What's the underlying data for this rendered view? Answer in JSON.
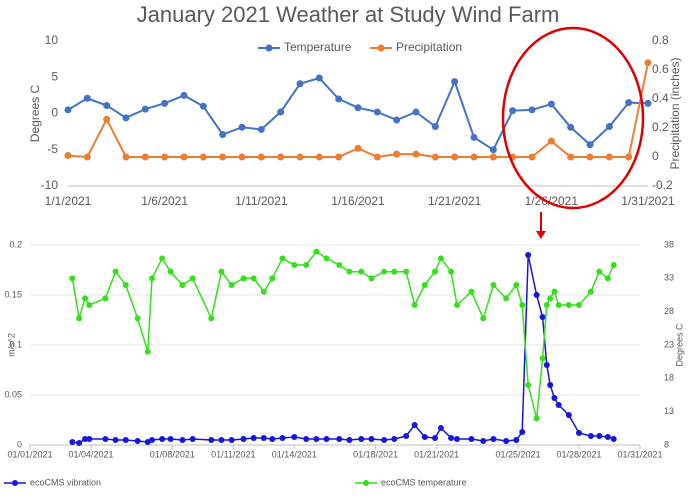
{
  "chart_data": [
    {
      "type": "line",
      "title": "January 2021 Weather at Study Wind Farm",
      "y_label": "Degrees C",
      "y2_label": "Precipitation (inches)",
      "categories": [
        "1/1/2021",
        null,
        null,
        null,
        null,
        "1/6/2021",
        null,
        null,
        null,
        null,
        "1/11/2021",
        null,
        null,
        null,
        null,
        "1/16/2021",
        null,
        null,
        null,
        null,
        "1/21/2021",
        null,
        null,
        null,
        null,
        "1/26/2021",
        null,
        null,
        null,
        null,
        "1/31/2021"
      ],
      "ylim": [
        -10,
        10
      ],
      "yticks": [
        -10,
        -5,
        0,
        5,
        10
      ],
      "y2lim": [
        -0.2,
        0.8
      ],
      "y2ticks": [
        -0.2,
        0,
        0.2,
        0.4,
        0.6,
        0.8
      ],
      "grid": false,
      "legend": "top",
      "series": [
        {
          "name": "Temperature",
          "color": "#4472c4",
          "values": [
            0.5,
            2.1,
            1.1,
            -0.6,
            0.6,
            1.4,
            2.5,
            1.0,
            -2.9,
            -1.9,
            -2.2,
            0.2,
            4.1,
            4.9,
            2.0,
            0.8,
            0.2,
            -0.9,
            0.2,
            -1.8,
            4.4,
            -3.3,
            -5.0,
            0.4,
            0.5,
            1.3,
            -1.9,
            -4.3,
            -1.8,
            1.5,
            1.4
          ]
        },
        {
          "name": "Precipitation",
          "color": "#ed7d31",
          "axis": "y2",
          "values": [
            0.01,
            0,
            0.26,
            0,
            0,
            0,
            0,
            0,
            0,
            0,
            0,
            0,
            0,
            0,
            0,
            0.06,
            0,
            0.02,
            0.02,
            0,
            0,
            0,
            0,
            0,
            0,
            0.11,
            0,
            0,
            0,
            0,
            0.65
          ]
        }
      ]
    },
    {
      "type": "line",
      "y_label": "m/s^2",
      "y2_label": "Degrees C",
      "x": [
        "2021-01-03T02:00",
        "2021-01-03T10:00",
        "2021-01-03T17:00",
        "2021-01-03T22:00",
        "2021-01-04T17:00",
        "2021-01-05T05:00",
        "2021-01-05T17:00",
        "2021-01-06T07:00",
        "2021-01-06T19:00",
        "2021-01-07T00:00",
        "2021-01-07T12:00",
        "2021-01-07T22:00",
        "2021-01-08T12:00",
        "2021-01-09T00:00",
        "2021-01-09T22:00",
        "2021-01-10T10:00",
        "2021-01-10T22:00",
        "2021-01-11T12:00",
        "2021-01-12T00:00",
        "2021-01-12T12:00",
        "2021-01-12T22:00",
        "2021-01-13T10:00",
        "2021-01-14T00:00",
        "2021-01-14T14:00",
        "2021-01-15T02:00",
        "2021-01-15T14:00",
        "2021-01-16T05:00",
        "2021-01-16T17:00",
        "2021-01-17T07:00",
        "2021-01-17T19:00",
        "2021-01-18T10:00",
        "2021-01-18T22:00",
        "2021-01-19T12:00",
        "2021-01-19T22:00",
        "2021-01-20T10:00",
        "2021-01-20T22:00",
        "2021-01-21T05:00",
        "2021-01-21T17:00",
        "2021-01-22T00:00",
        "2021-01-22T17:00",
        "2021-01-23T07:00",
        "2021-01-23T19:00",
        "2021-01-24T10:00",
        "2021-01-24T22:00",
        "2021-01-25T05:00",
        "2021-01-25T12:00",
        "2021-01-25T22:00",
        "2021-01-26T05:00",
        "2021-01-26T10:00",
        "2021-01-26T14:00",
        "2021-01-26T19:00",
        "2021-01-27T00:00",
        "2021-01-27T12:00",
        "2021-01-28T00:00",
        "2021-01-28T14:00",
        "2021-01-29T00:00",
        "2021-01-29T10:00",
        "2021-01-29T17:00"
      ],
      "xlim": [
        "2021-01-01T00:00",
        "2021-01-31T00:00"
      ],
      "xticks": [
        {
          "value": "2021-01-01T00:00",
          "label": "01/01/2021"
        },
        {
          "value": "2021-01-04T00:00",
          "label": "01/04/2021"
        },
        {
          "value": "2021-01-08T00:00",
          "label": "01/08/2021"
        },
        {
          "value": "2021-01-11T00:00",
          "label": "01/11/2021"
        },
        {
          "value": "2021-01-14T00:00",
          "label": "01/14/2021"
        },
        {
          "value": "2021-01-18T00:00",
          "label": "01/18/2021"
        },
        {
          "value": "2021-01-21T00:00",
          "label": "01/21/2021"
        },
        {
          "value": "2021-01-25T00:00",
          "label": "01/25/2021"
        },
        {
          "value": "2021-01-28T00:00",
          "label": "01/28/2021"
        },
        {
          "value": "2021-01-31T00:00",
          "label": "01/31/2021"
        }
      ],
      "ylim": [
        0,
        0.2
      ],
      "yticks": [
        0,
        0.05,
        0.1,
        0.15,
        0.2
      ],
      "y2lim": [
        8,
        38
      ],
      "y2ticks": [
        8,
        13,
        18,
        23,
        28,
        33,
        38
      ],
      "grid": true,
      "legend": "bottom",
      "series": [
        {
          "name": "ecoCMS vibration",
          "color": "#1515e0",
          "values": [
            0.003,
            0.002,
            0.006,
            0.006,
            0.006,
            0.005,
            0.005,
            0.004,
            0.003,
            0.005,
            0.006,
            0.006,
            0.005,
            0.006,
            0.005,
            0.005,
            0.005,
            0.006,
            0.007,
            0.007,
            0.006,
            0.007,
            0.008,
            0.006,
            0.006,
            0.006,
            0.006,
            0.005,
            0.006,
            0.006,
            0.005,
            0.006,
            0.009,
            0.02,
            0.008,
            0.007,
            0.017,
            0.007,
            0.006,
            0.006,
            0.004,
            0.006,
            0.004,
            0.005,
            0.013,
            0.19,
            0.15,
            0.128,
            0.08,
            0.06,
            0.047,
            0.04,
            0.03,
            0.012,
            0.009,
            0.009,
            0.008,
            0.006
          ]
        },
        {
          "name": "ecoCMS temperature",
          "color": "#33e01a",
          "axis": "y2",
          "values": [
            33,
            27,
            30,
            29,
            30,
            34,
            32,
            27,
            22,
            33,
            36,
            34,
            32,
            33,
            27,
            34,
            32,
            33,
            33,
            31,
            33,
            36,
            35,
            35,
            37,
            36,
            35,
            34,
            34,
            33,
            34,
            34,
            34,
            29,
            32,
            34,
            36,
            34,
            29,
            31,
            27,
            32,
            30,
            32,
            29,
            17,
            12,
            21,
            29,
            30,
            31,
            29,
            29,
            29,
            31,
            34,
            33,
            35
          ]
        }
      ]
    }
  ]
}
